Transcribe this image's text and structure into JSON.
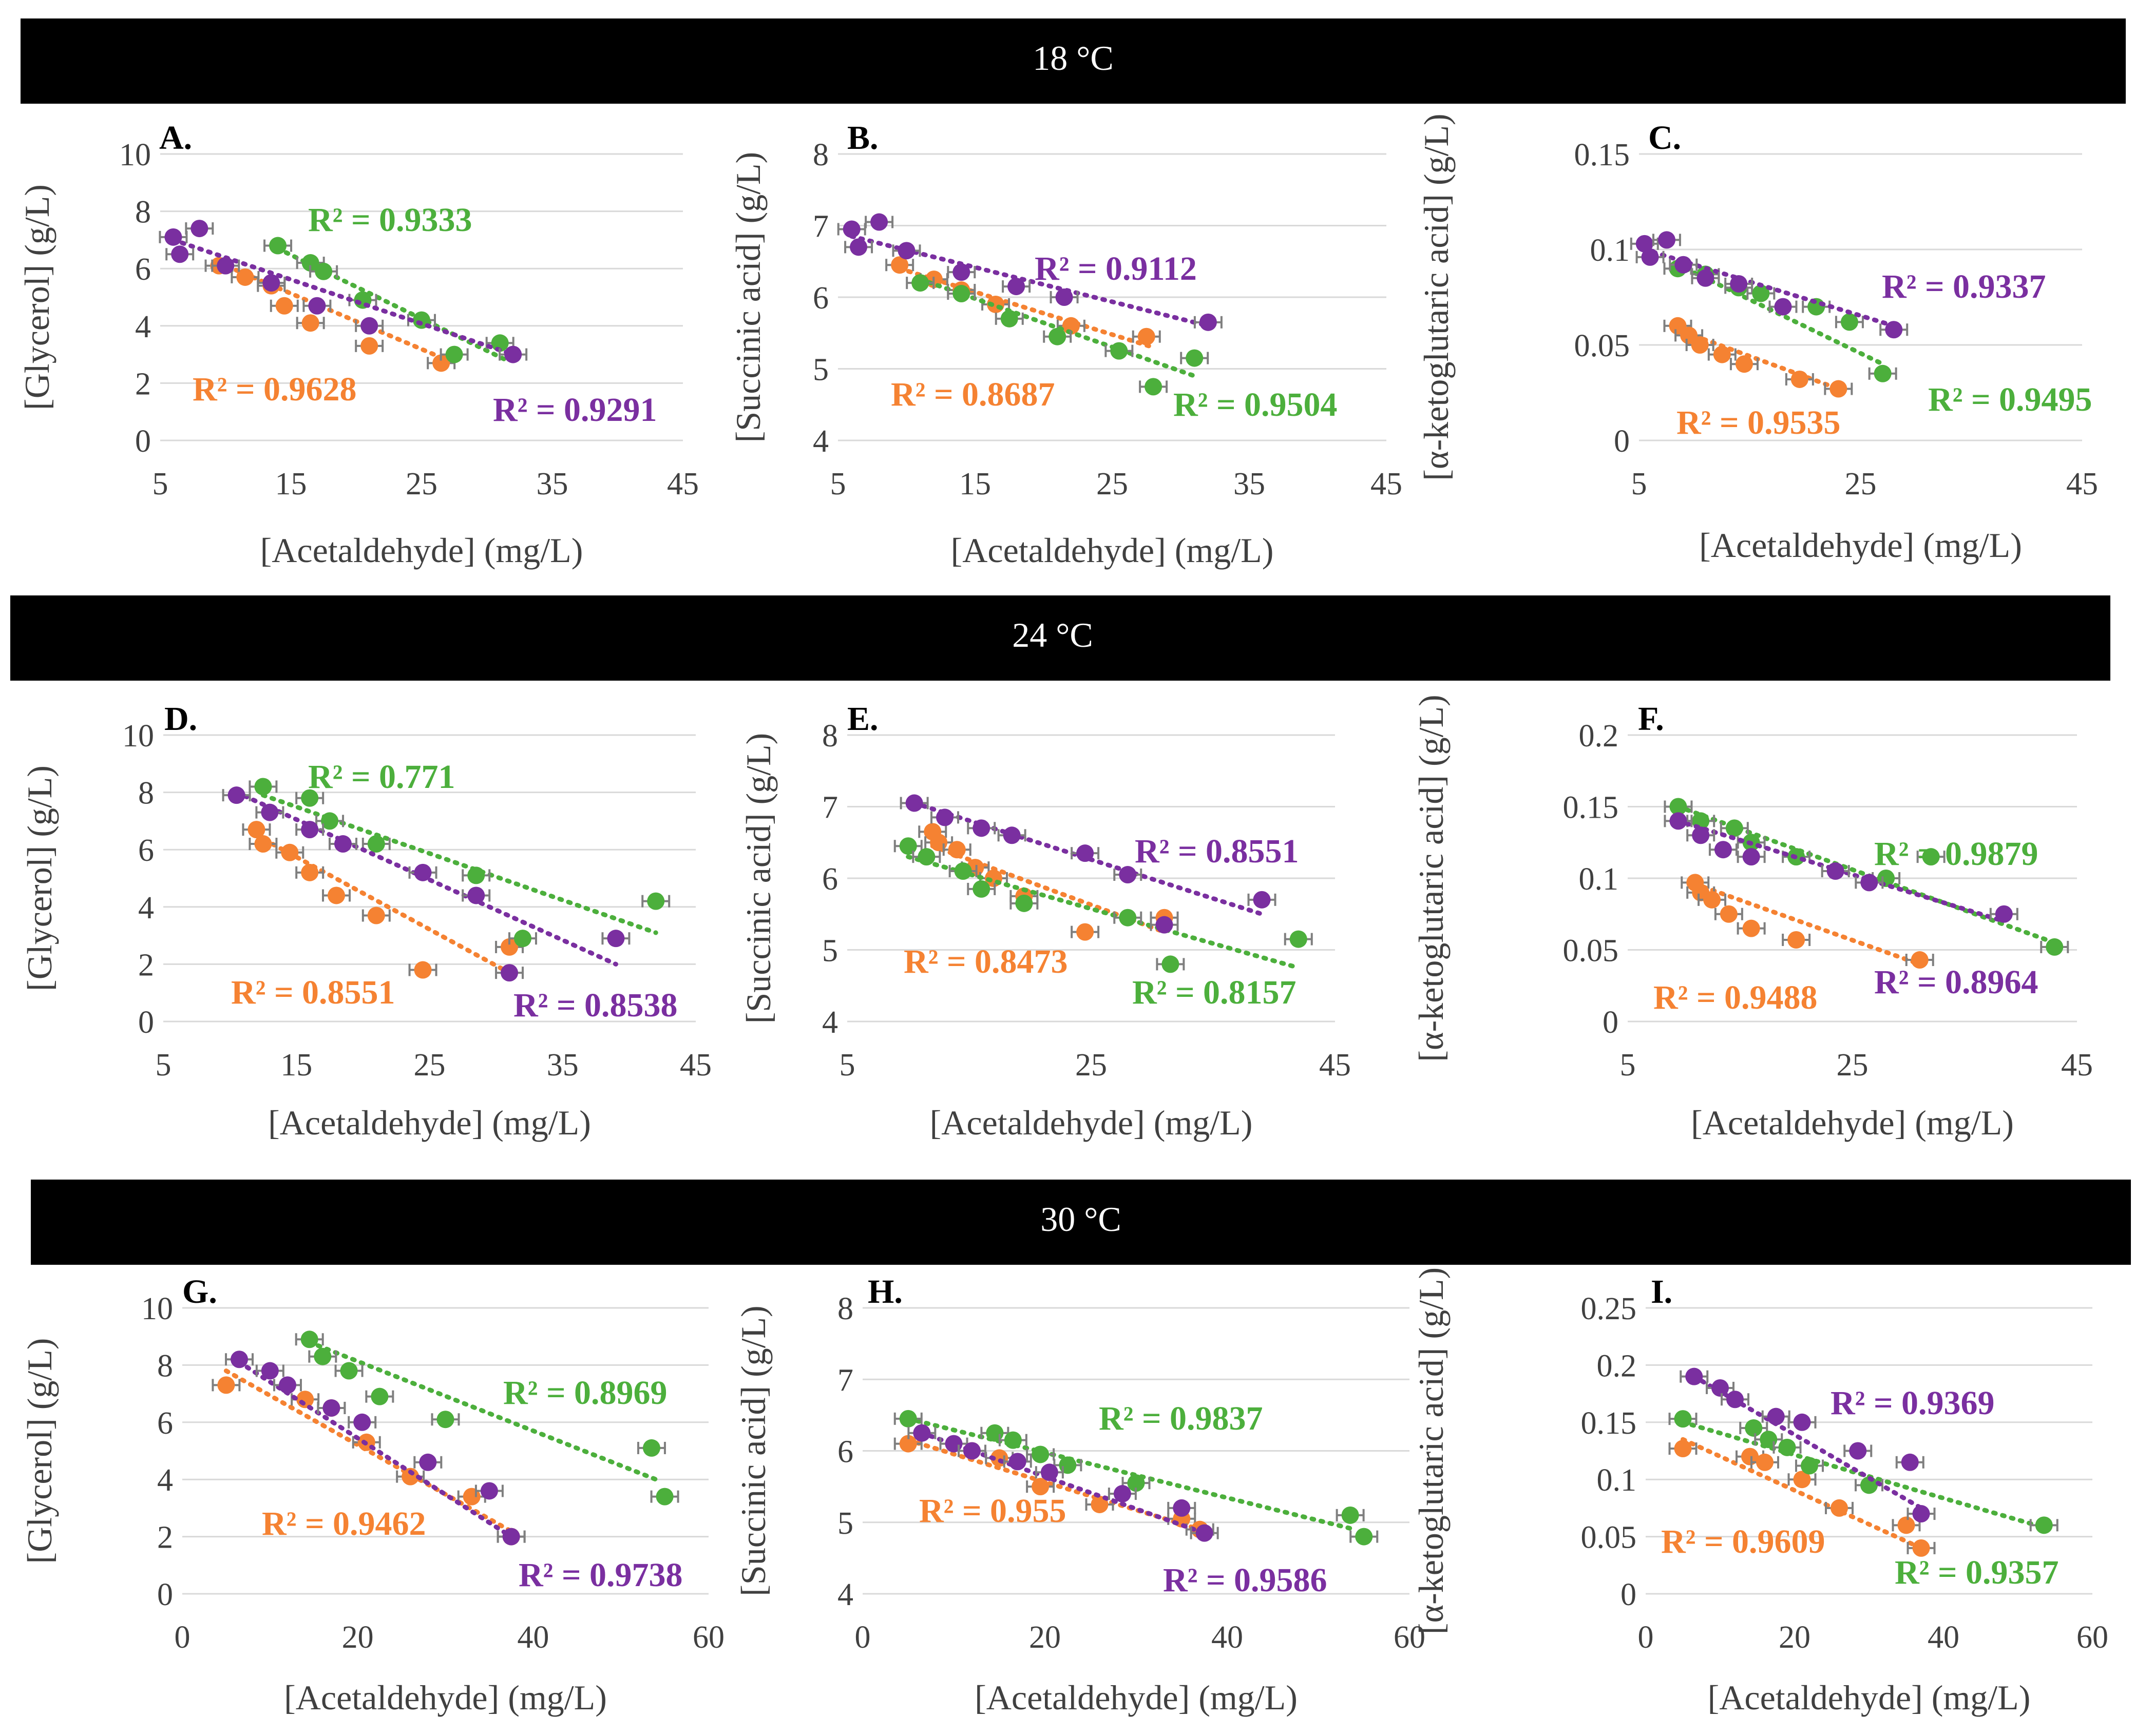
{
  "colors": {
    "orange": "#F58232",
    "green": "#4CAF3C",
    "purple": "#7A2FA0",
    "grid": "#D9D9D9",
    "axis_text": "#404040",
    "banner": "#000000",
    "error_bar": "#7F7F7F"
  },
  "banners": [
    "18 °C",
    "24 °C",
    "30 °C"
  ],
  "chart_data": [
    {
      "id": "A",
      "panel_label": "A.",
      "type": "scatter",
      "ylabel": "[Glycerol] (g/L)",
      "xlabel": "[Acetaldehyde] (mg/L)",
      "xlim": [
        5,
        45
      ],
      "xticks": [
        "5",
        "15",
        "25",
        "35",
        "45"
      ],
      "ylim": [
        0,
        10
      ],
      "yticks": [
        "0",
        "2",
        "4",
        "6",
        "8",
        "10"
      ],
      "series": [
        {
          "color": "orange",
          "r2": "R² = 0.9628",
          "x": [
            9.5,
            11.5,
            13.5,
            14.5,
            16.5,
            21,
            26.5
          ],
          "y": [
            6.1,
            5.7,
            5.4,
            4.7,
            4.1,
            3.3,
            2.7
          ],
          "trend": [
            [
              9.5,
              6.2
            ],
            [
              27.5,
              2.7
            ]
          ]
        },
        {
          "color": "green",
          "r2": "R² = 0.9333",
          "x": [
            14,
            16.5,
            17.5,
            20.5,
            25,
            27.5,
            31
          ],
          "y": [
            6.8,
            6.2,
            5.9,
            4.9,
            4.2,
            3.0,
            3.4
          ],
          "trend": [
            [
              14,
              6.7
            ],
            [
              31.5,
              2.8
            ]
          ]
        },
        {
          "color": "purple",
          "r2": "R² = 0.9291",
          "x": [
            6,
            6.5,
            8,
            10,
            13.5,
            17,
            21,
            32
          ],
          "y": [
            7.1,
            6.5,
            7.4,
            6.1,
            5.5,
            4.7,
            4.0,
            3.0
          ],
          "trend": [
            [
              6,
              7.0
            ],
            [
              32,
              3.0
            ]
          ]
        }
      ]
    },
    {
      "id": "B",
      "panel_label": "B.",
      "type": "scatter",
      "ylabel": "[Succinic acid] (g/L)",
      "xlabel": "[Acetaldehyde] (mg/L)",
      "xlim": [
        5,
        45
      ],
      "xticks": [
        "5",
        "15",
        "25",
        "35",
        "45"
      ],
      "ylim": [
        4,
        8
      ],
      "yticks": [
        "4",
        "5",
        "6",
        "7",
        "8"
      ],
      "series": [
        {
          "color": "orange",
          "r2": "R² = 0.8687",
          "x": [
            9.5,
            12,
            14,
            16.5,
            22,
            27.5
          ],
          "y": [
            6.45,
            6.25,
            6.1,
            5.9,
            5.6,
            5.45
          ],
          "trend": [
            [
              9.5,
              6.4
            ],
            [
              28,
              5.3
            ]
          ]
        },
        {
          "color": "green",
          "r2": "R² = 0.9504",
          "x": [
            11,
            14,
            17.5,
            21,
            25.5,
            28,
            31
          ],
          "y": [
            6.2,
            6.05,
            5.7,
            5.45,
            5.25,
            4.75,
            5.15
          ],
          "trend": [
            [
              11,
              6.25
            ],
            [
              31,
              4.9
            ]
          ]
        },
        {
          "color": "purple",
          "r2": "R² = 0.9112",
          "x": [
            6,
            6.5,
            8,
            10,
            14,
            18,
            21.5,
            32
          ],
          "y": [
            6.95,
            6.7,
            7.05,
            6.65,
            6.35,
            6.15,
            6.0,
            5.65
          ],
          "trend": [
            [
              6,
              6.85
            ],
            [
              32,
              5.6
            ]
          ]
        }
      ]
    },
    {
      "id": "C",
      "panel_label": "C.",
      "type": "scatter",
      "ylabel": "[α-ketoglutaric acid] (g/L)",
      "xlabel": "[Acetaldehyde] (mg/L)",
      "xlim": [
        5,
        45
      ],
      "xticks": [
        "5",
        "25",
        "45"
      ],
      "ylim": [
        0,
        0.15
      ],
      "yticks": [
        "0",
        "0.05",
        "0.1",
        "0.15"
      ],
      "series": [
        {
          "color": "orange",
          "r2": "R² = 0.9535",
          "x": [
            8.5,
            9.5,
            10.5,
            12.5,
            14.5,
            19.5,
            23
          ],
          "y": [
            0.06,
            0.055,
            0.05,
            0.045,
            0.04,
            0.032,
            0.027
          ],
          "trend": [
            [
              8.5,
              0.058
            ],
            [
              23,
              0.027
            ]
          ]
        },
        {
          "color": "green",
          "r2": "R² = 0.9495",
          "x": [
            8.5,
            11,
            14,
            16,
            21,
            24,
            27
          ],
          "y": [
            0.09,
            0.087,
            0.08,
            0.077,
            0.07,
            0.062,
            0.035
          ],
          "trend": [
            [
              8.5,
              0.092
            ],
            [
              27,
              0.04
            ]
          ]
        },
        {
          "color": "purple",
          "r2": "R² = 0.9337",
          "x": [
            5.5,
            6,
            7.5,
            9,
            11,
            14,
            18,
            28
          ],
          "y": [
            0.103,
            0.096,
            0.105,
            0.092,
            0.085,
            0.082,
            0.07,
            0.058
          ],
          "trend": [
            [
              5.5,
              0.1
            ],
            [
              28,
              0.06
            ]
          ]
        }
      ]
    },
    {
      "id": "D",
      "panel_label": "D.",
      "type": "scatter",
      "ylabel": "[Glycerol] (g/L)",
      "xlabel": "[Acetaldehyde] (mg/L)",
      "xlim": [
        5,
        45
      ],
      "xticks": [
        "5",
        "15",
        "25",
        "35",
        "45"
      ],
      "ylim": [
        0,
        10
      ],
      "yticks": [
        "0",
        "2",
        "4",
        "6",
        "8",
        "10"
      ],
      "series": [
        {
          "color": "orange",
          "r2": "R² = 0.8551",
          "x": [
            12,
            12.5,
            14.5,
            16,
            18,
            21,
            24.5,
            31
          ],
          "y": [
            6.7,
            6.2,
            5.9,
            5.2,
            4.4,
            3.7,
            1.8,
            2.6
          ],
          "trend": [
            [
              12,
              6.5
            ],
            [
              31,
              1.7
            ]
          ]
        },
        {
          "color": "green",
          "r2": "R² = 0.771",
          "x": [
            12.5,
            16,
            17.5,
            21,
            28.5,
            32,
            42
          ],
          "y": [
            8.2,
            7.8,
            7.0,
            6.2,
            5.1,
            2.9,
            4.2
          ],
          "trend": [
            [
              12.5,
              7.9
            ],
            [
              42,
              3.1
            ]
          ]
        },
        {
          "color": "purple",
          "r2": "R² = 0.8538",
          "x": [
            10.5,
            13,
            16,
            18.5,
            24.5,
            28.5,
            31,
            39
          ],
          "y": [
            7.9,
            7.3,
            6.7,
            6.2,
            5.2,
            4.4,
            1.7,
            2.9
          ],
          "trend": [
            [
              10.5,
              8.0
            ],
            [
              39,
              2.0
            ]
          ]
        }
      ]
    },
    {
      "id": "E",
      "panel_label": "E.",
      "type": "scatter",
      "ylabel": "[Succinic acid] (g/L)",
      "xlabel": "[Acetaldehyde] (mg/L)",
      "xlim": [
        5,
        45
      ],
      "xticks": [
        "5",
        "25",
        "45"
      ],
      "ylim": [
        4,
        8
      ],
      "yticks": [
        "4",
        "5",
        "6",
        "7",
        "8"
      ],
      "series": [
        {
          "color": "orange",
          "r2": "R² = 0.8473",
          "x": [
            12,
            12.5,
            14,
            15.5,
            17,
            19.5,
            24.5,
            31
          ],
          "y": [
            6.65,
            6.5,
            6.4,
            6.15,
            6.0,
            5.75,
            5.25,
            5.45
          ],
          "trend": [
            [
              12,
              6.45
            ],
            [
              31,
              5.25
            ]
          ]
        },
        {
          "color": "green",
          "r2": "R² = 0.8157",
          "x": [
            10,
            11.5,
            14.5,
            16,
            19.5,
            28,
            31.5,
            42
          ],
          "y": [
            6.45,
            6.3,
            6.1,
            5.85,
            5.65,
            5.45,
            4.8,
            5.15
          ],
          "trend": [
            [
              10,
              6.3
            ],
            [
              42,
              4.75
            ]
          ]
        },
        {
          "color": "purple",
          "r2": "R² = 0.8551",
          "x": [
            10.5,
            13,
            16,
            18.5,
            24.5,
            28,
            31,
            39
          ],
          "y": [
            7.05,
            6.85,
            6.7,
            6.6,
            6.35,
            6.05,
            5.35,
            5.7
          ],
          "trend": [
            [
              10.5,
              7.05
            ],
            [
              39,
              5.5
            ]
          ]
        }
      ]
    },
    {
      "id": "F",
      "panel_label": "F.",
      "type": "scatter",
      "ylabel": "[α-ketoglutaric acid] (g/L)",
      "xlabel": "[Acetaldehyde] (mg/L)",
      "xlim": [
        5,
        45
      ],
      "xticks": [
        "5",
        "25",
        "45"
      ],
      "ylim": [
        0,
        0.2
      ],
      "yticks": [
        "0",
        "0.05",
        "0.1",
        "0.15",
        "0.2"
      ],
      "series": [
        {
          "color": "orange",
          "r2": "R² = 0.9488",
          "x": [
            11,
            11.5,
            12.5,
            14,
            16,
            20,
            31
          ],
          "y": [
            0.097,
            0.09,
            0.085,
            0.075,
            0.065,
            0.057,
            0.043
          ],
          "trend": [
            [
              11,
              0.096
            ],
            [
              31,
              0.04
            ]
          ]
        },
        {
          "color": "green",
          "r2": "R² = 0.9879",
          "x": [
            9.5,
            11.5,
            14.5,
            16,
            20,
            28,
            32,
            43
          ],
          "y": [
            0.15,
            0.14,
            0.135,
            0.125,
            0.115,
            0.1,
            0.115,
            0.052
          ],
          "trend": [
            [
              9.5,
              0.15
            ],
            [
              43,
              0.055
            ]
          ]
        },
        {
          "color": "purple",
          "r2": "R² = 0.8964",
          "x": [
            9.5,
            11.5,
            13.5,
            16,
            23.5,
            26.5,
            38.5
          ],
          "y": [
            0.14,
            0.13,
            0.12,
            0.115,
            0.105,
            0.097,
            0.075
          ],
          "trend": [
            [
              9.5,
              0.14
            ],
            [
              38.5,
              0.07
            ]
          ]
        }
      ]
    },
    {
      "id": "G",
      "panel_label": "G.",
      "type": "scatter",
      "ylabel": "[Glycerol] (g/L)",
      "xlabel": "[Acetaldehyde] (mg/L)",
      "xlim": [
        0,
        60
      ],
      "xticks": [
        "0",
        "20",
        "40",
        "60"
      ],
      "ylim": [
        0,
        10
      ],
      "yticks": [
        "0",
        "2",
        "4",
        "6",
        "8",
        "10"
      ],
      "series": [
        {
          "color": "orange",
          "r2": "R² = 0.9462",
          "x": [
            5,
            14,
            17,
            21,
            26,
            33,
            37.5
          ],
          "y": [
            7.3,
            6.8,
            6.5,
            5.3,
            4.1,
            3.4,
            2.0
          ],
          "trend": [
            [
              5,
              7.8
            ],
            [
              38,
              2.1
            ]
          ]
        },
        {
          "color": "green",
          "r2": "R² = 0.8969",
          "x": [
            14.5,
            16,
            19,
            22.5,
            30,
            53.5,
            55
          ],
          "y": [
            8.9,
            8.3,
            7.8,
            6.9,
            6.1,
            5.1,
            3.4
          ],
          "trend": [
            [
              14.5,
              8.8
            ],
            [
              54,
              4.0
            ]
          ]
        },
        {
          "color": "purple",
          "r2": "R² = 0.9738",
          "x": [
            6.5,
            10,
            12,
            17,
            20.5,
            28,
            35,
            37.5
          ],
          "y": [
            8.2,
            7.8,
            7.3,
            6.5,
            6.0,
            4.6,
            3.6,
            2.0
          ],
          "trend": [
            [
              6.5,
              8.1
            ],
            [
              38,
              1.9
            ]
          ]
        }
      ]
    },
    {
      "id": "H",
      "panel_label": "H.",
      "type": "scatter",
      "ylabel": "[Succinic acid] (g/L)",
      "xlabel": "[Acetaldehyde] (mg/L)",
      "xlim": [
        0,
        60
      ],
      "xticks": [
        "0",
        "20",
        "40",
        "60"
      ],
      "ylim": [
        4,
        8
      ],
      "yticks": [
        "4",
        "5",
        "6",
        "7",
        "8"
      ],
      "series": [
        {
          "color": "orange",
          "r2": "R² = 0.955",
          "x": [
            5,
            12,
            15,
            19.5,
            26,
            35,
            37
          ],
          "y": [
            6.1,
            6.0,
            5.9,
            5.5,
            5.25,
            5.05,
            4.9
          ],
          "trend": [
            [
              5,
              6.15
            ],
            [
              37,
              4.9
            ]
          ]
        },
        {
          "color": "green",
          "r2": "R² = 0.9837",
          "x": [
            5,
            14.5,
            16.5,
            19.5,
            22.5,
            30,
            53.5,
            55
          ],
          "y": [
            6.45,
            6.25,
            6.15,
            5.95,
            5.8,
            5.55,
            5.1,
            4.8
          ],
          "trend": [
            [
              5,
              6.45
            ],
            [
              54,
              4.9
            ]
          ]
        },
        {
          "color": "purple",
          "r2": "R² = 0.9586",
          "x": [
            6.5,
            10,
            12,
            17,
            20.5,
            28.5,
            35,
            37.5
          ],
          "y": [
            6.25,
            6.1,
            6.0,
            5.85,
            5.7,
            5.4,
            5.2,
            4.85
          ],
          "trend": [
            [
              6.5,
              6.25
            ],
            [
              37.5,
              4.85
            ]
          ]
        }
      ]
    },
    {
      "id": "I",
      "panel_label": "I.",
      "type": "scatter",
      "ylabel": "[α-ketoglutaric acid] (g/L)",
      "xlabel": "[Acetaldehyde] (mg/L)",
      "xlim": [
        0,
        60
      ],
      "xticks": [
        "0",
        "20",
        "40",
        "60"
      ],
      "ylim": [
        0,
        0.25
      ],
      "yticks": [
        "0",
        "0.05",
        "0.1",
        "0.15",
        "0.2",
        "0.25"
      ],
      "series": [
        {
          "color": "orange",
          "r2": "R² = 0.9609",
          "x": [
            5,
            14,
            16,
            21,
            26,
            35,
            37
          ],
          "y": [
            0.127,
            0.12,
            0.115,
            0.1,
            0.075,
            0.06,
            0.04
          ],
          "trend": [
            [
              5,
              0.135
            ],
            [
              37,
              0.04
            ]
          ]
        },
        {
          "color": "green",
          "r2": "R² = 0.9357",
          "x": [
            5,
            14.5,
            16.5,
            19,
            22,
            30,
            53.5
          ],
          "y": [
            0.153,
            0.145,
            0.135,
            0.128,
            0.112,
            0.095,
            0.06
          ],
          "trend": [
            [
              5,
              0.15
            ],
            [
              53.5,
              0.058
            ]
          ]
        },
        {
          "color": "purple",
          "r2": "R² = 0.9369",
          "x": [
            6.5,
            10,
            12,
            17.5,
            21,
            28.5,
            35.5,
            37
          ],
          "y": [
            0.19,
            0.18,
            0.17,
            0.155,
            0.15,
            0.125,
            0.115,
            0.07
          ],
          "trend": [
            [
              6.5,
              0.19
            ],
            [
              37,
              0.075
            ]
          ]
        }
      ]
    }
  ]
}
